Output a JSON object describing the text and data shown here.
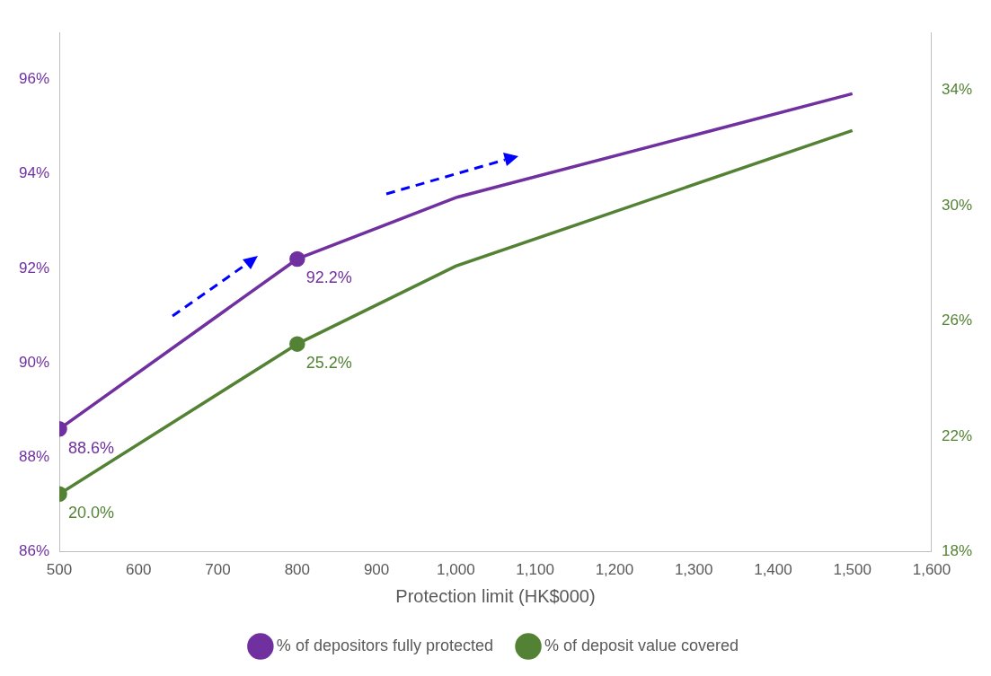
{
  "chart_data": {
    "type": "line",
    "xlabel": "Protection limit (HK$000)",
    "x": [
      500,
      800,
      1000,
      1500
    ],
    "xlim": [
      500,
      1600
    ],
    "xticks": [
      500,
      600,
      700,
      800,
      900,
      {
        "value": 1000,
        "label": "1,000"
      },
      {
        "value": 1100,
        "label": "1,100"
      },
      {
        "value": 1200,
        "label": "1,200"
      },
      {
        "value": 1300,
        "label": "1,300"
      },
      {
        "value": 1400,
        "label": "1,400"
      },
      {
        "value": 1500,
        "label": "1,500"
      },
      {
        "value": 1600,
        "label": "1,600"
      }
    ],
    "ylim": [
      86,
      97
    ],
    "yticks": [
      {
        "value": 86,
        "label": "86%"
      },
      {
        "value": 88,
        "label": "88%"
      },
      {
        "value": 90,
        "label": "90%"
      },
      {
        "value": 92,
        "label": "92%"
      },
      {
        "value": 94,
        "label": "94%"
      },
      {
        "value": 96,
        "label": "96%"
      }
    ],
    "y2lim": [
      18,
      36
    ],
    "y2ticks": [
      {
        "value": 18,
        "label": "18%"
      },
      {
        "value": 22,
        "label": "22%"
      },
      {
        "value": 26,
        "label": "26%"
      },
      {
        "value": 30,
        "label": "30%"
      },
      {
        "value": 34,
        "label": "34%"
      }
    ],
    "series": [
      {
        "name": "% of depositors fully protected",
        "color": "#7030a0",
        "values": [
          88.6,
          92.2,
          93.5,
          95.7
        ],
        "value_labels": [
          "88.6%",
          "92.2%",
          null,
          null
        ]
      },
      {
        "name": "% of deposit value covered",
        "color": "#548235",
        "axis": "y2",
        "values": [
          20.0,
          25.2,
          27.9,
          32.6
        ],
        "value_labels": [
          "20.0%",
          "25.2%",
          null,
          null
        ]
      }
    ],
    "marker": "circle",
    "line_style": "solid",
    "grid": false,
    "legend": "bottom"
  }
}
